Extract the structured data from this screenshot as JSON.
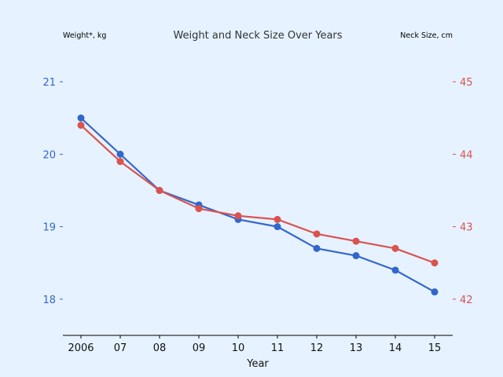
{
  "chart_data": {
    "type": "line",
    "title": "Weight and Neck Size Over Years",
    "xlabel": "Year",
    "x_tick_labels": [
      "2006",
      "07",
      "08",
      "09",
      "10",
      "11",
      "12",
      "13",
      "14",
      "15"
    ],
    "x": [
      2006,
      2007,
      2008,
      2009,
      2010,
      2011,
      2012,
      2013,
      2014,
      2015
    ],
    "y_left": {
      "label": "Weight*, kg",
      "lim": [
        17.5,
        21.5
      ],
      "ticks": [
        18,
        19,
        20,
        21
      ],
      "color": "#3366cc"
    },
    "y_right": {
      "label": "Neck Size, cm",
      "lim": [
        41.5,
        45.5
      ],
      "ticks": [
        42,
        43,
        44,
        45
      ],
      "color": "#d9534f"
    },
    "series": [
      {
        "axis": "left",
        "color": "#3366cc",
        "values": [
          20.5,
          20.0,
          19.5,
          19.3,
          19.1,
          19.0,
          18.7,
          18.6,
          18.4,
          18.1
        ]
      },
      {
        "axis": "right",
        "color": "#d9534f",
        "values": [
          44.4,
          43.9,
          43.5,
          43.25,
          43.15,
          43.1,
          42.9,
          42.8,
          42.7,
          42.5
        ]
      }
    ],
    "grid": false,
    "background": "#e6f2ff"
  }
}
